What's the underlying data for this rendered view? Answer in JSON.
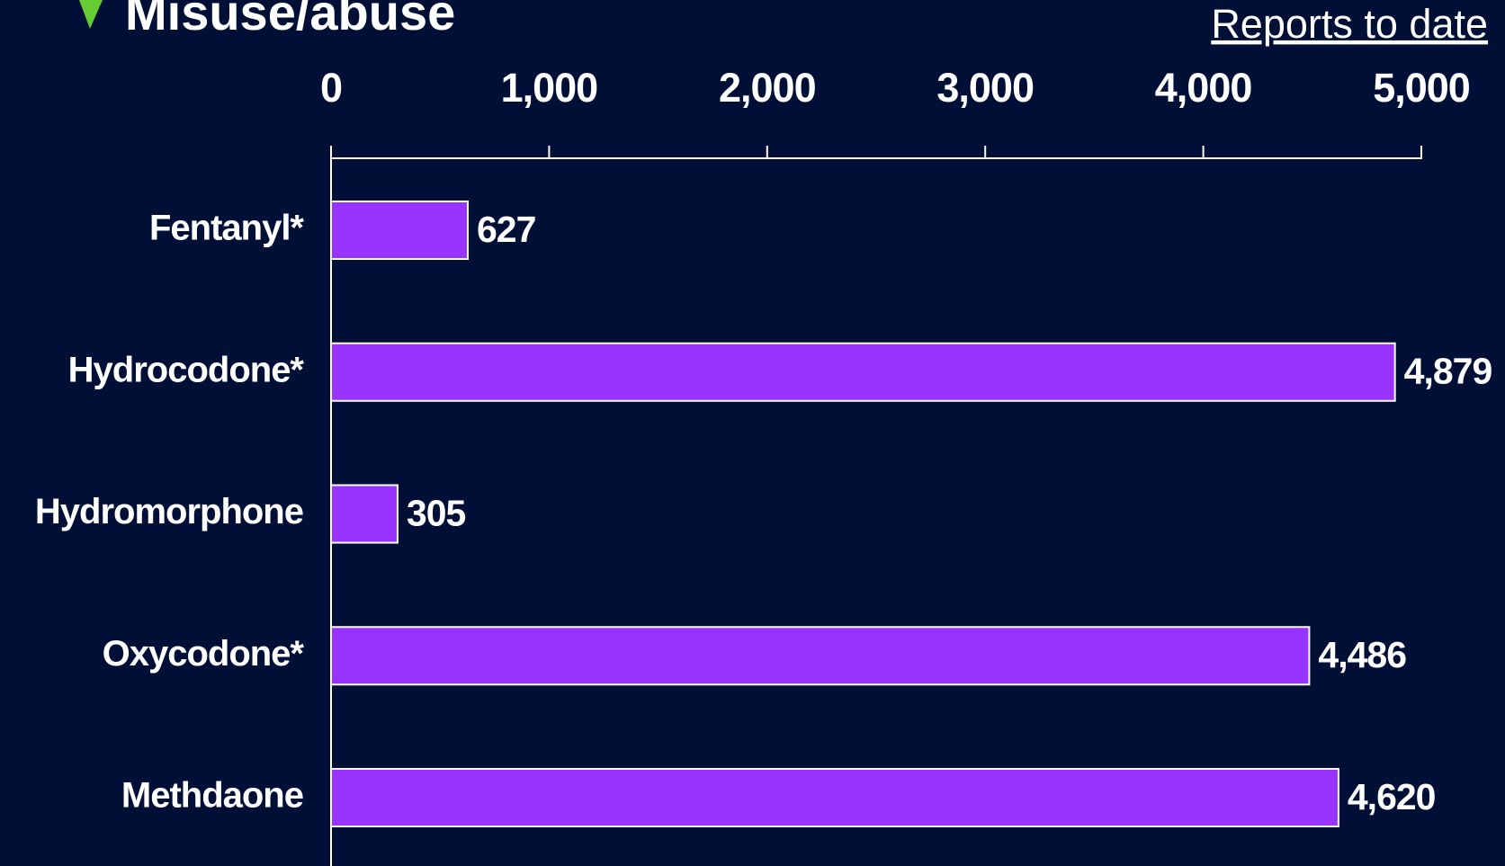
{
  "chart_data": {
    "type": "bar",
    "orientation": "horizontal",
    "title": "Misuse/abuse",
    "x_label": "Reports to date",
    "categories": [
      "Fentanyl*",
      "Hydrocodone*",
      "Hydromorphone",
      "Oxycodone*",
      "Methdaone"
    ],
    "values": [
      627,
      4879,
      305,
      4486,
      4620
    ],
    "value_labels": [
      "627",
      "4,879",
      "305",
      "4,486",
      "4,620"
    ],
    "color": "#9933ff",
    "xlim": [
      0,
      5000
    ],
    "xticks": [
      0,
      {
        "value": 1000,
        "label": "1,000"
      },
      {
        "value": 2000,
        "label": "2,000"
      },
      {
        "value": 3000,
        "label": "3,000"
      },
      {
        "value": 4000,
        "label": "4,000"
      },
      {
        "value": 5000,
        "label": "5,000"
      }
    ]
  }
}
